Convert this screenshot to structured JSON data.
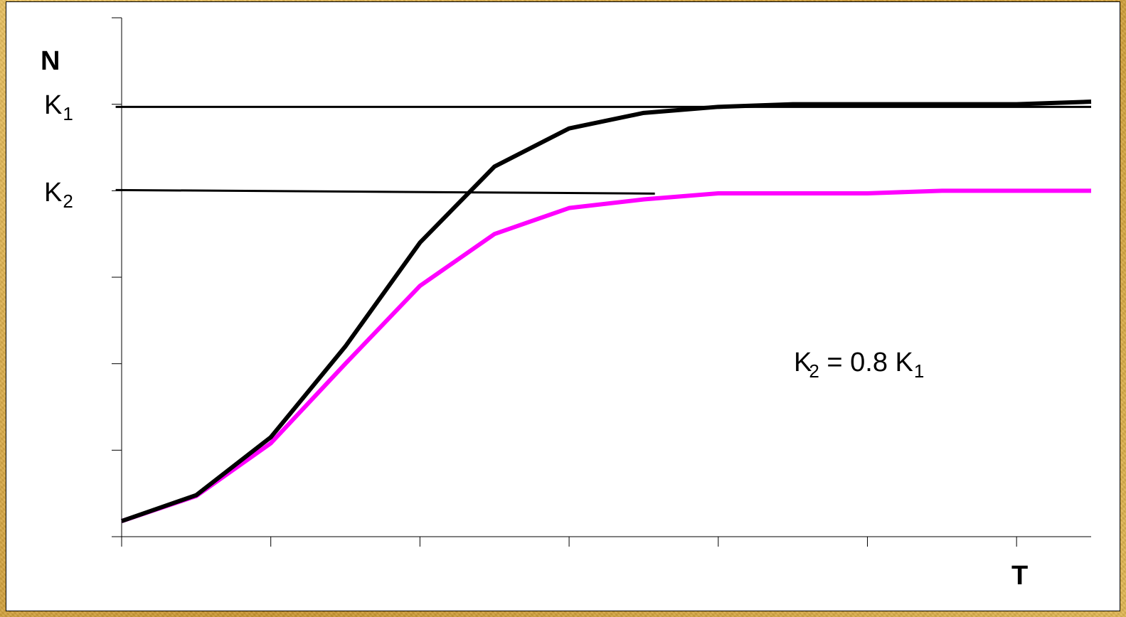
{
  "chart_data": {
    "type": "line",
    "title": "",
    "xlabel": "T",
    "ylabel": "N",
    "x": [
      0,
      1,
      2,
      3,
      4,
      5,
      6,
      7,
      8,
      9,
      10,
      11,
      12,
      13
    ],
    "xlim": [
      0,
      13
    ],
    "ylim": [
      0,
      6
    ],
    "x_tick_positions": [
      0,
      2,
      4,
      6,
      8,
      10,
      12
    ],
    "y_tick_positions": [
      0,
      1,
      2,
      3,
      4,
      5,
      6
    ],
    "grid": false,
    "series": [
      {
        "values": [
          0.18,
          0.48,
          1.15,
          2.2,
          3.4,
          4.28,
          4.72,
          4.9,
          4.97,
          5.0,
          5.0,
          5.0,
          5.0,
          5.03
        ],
        "color": "#000000"
      },
      {
        "values": [
          0.18,
          0.47,
          1.08,
          2.0,
          2.9,
          3.5,
          3.8,
          3.9,
          3.97,
          3.97,
          3.97,
          4.0,
          4.0,
          4.0
        ],
        "color": "#ff00ff"
      }
    ],
    "reference_lines": [
      {
        "label": "K",
        "subscript": "1",
        "y": 4.97,
        "x_start": -0.08,
        "x_end": 13,
        "color": "#000000"
      },
      {
        "label": "K",
        "subscript": "2",
        "y": 4.0,
        "x_start": -0.08,
        "x_end": 7.15,
        "color": "#000000"
      }
    ],
    "annotations": [
      {
        "text_main": "K",
        "sub_a": "2",
        "text_mid": " = 0.8 K",
        "sub_b": "1"
      }
    ]
  }
}
